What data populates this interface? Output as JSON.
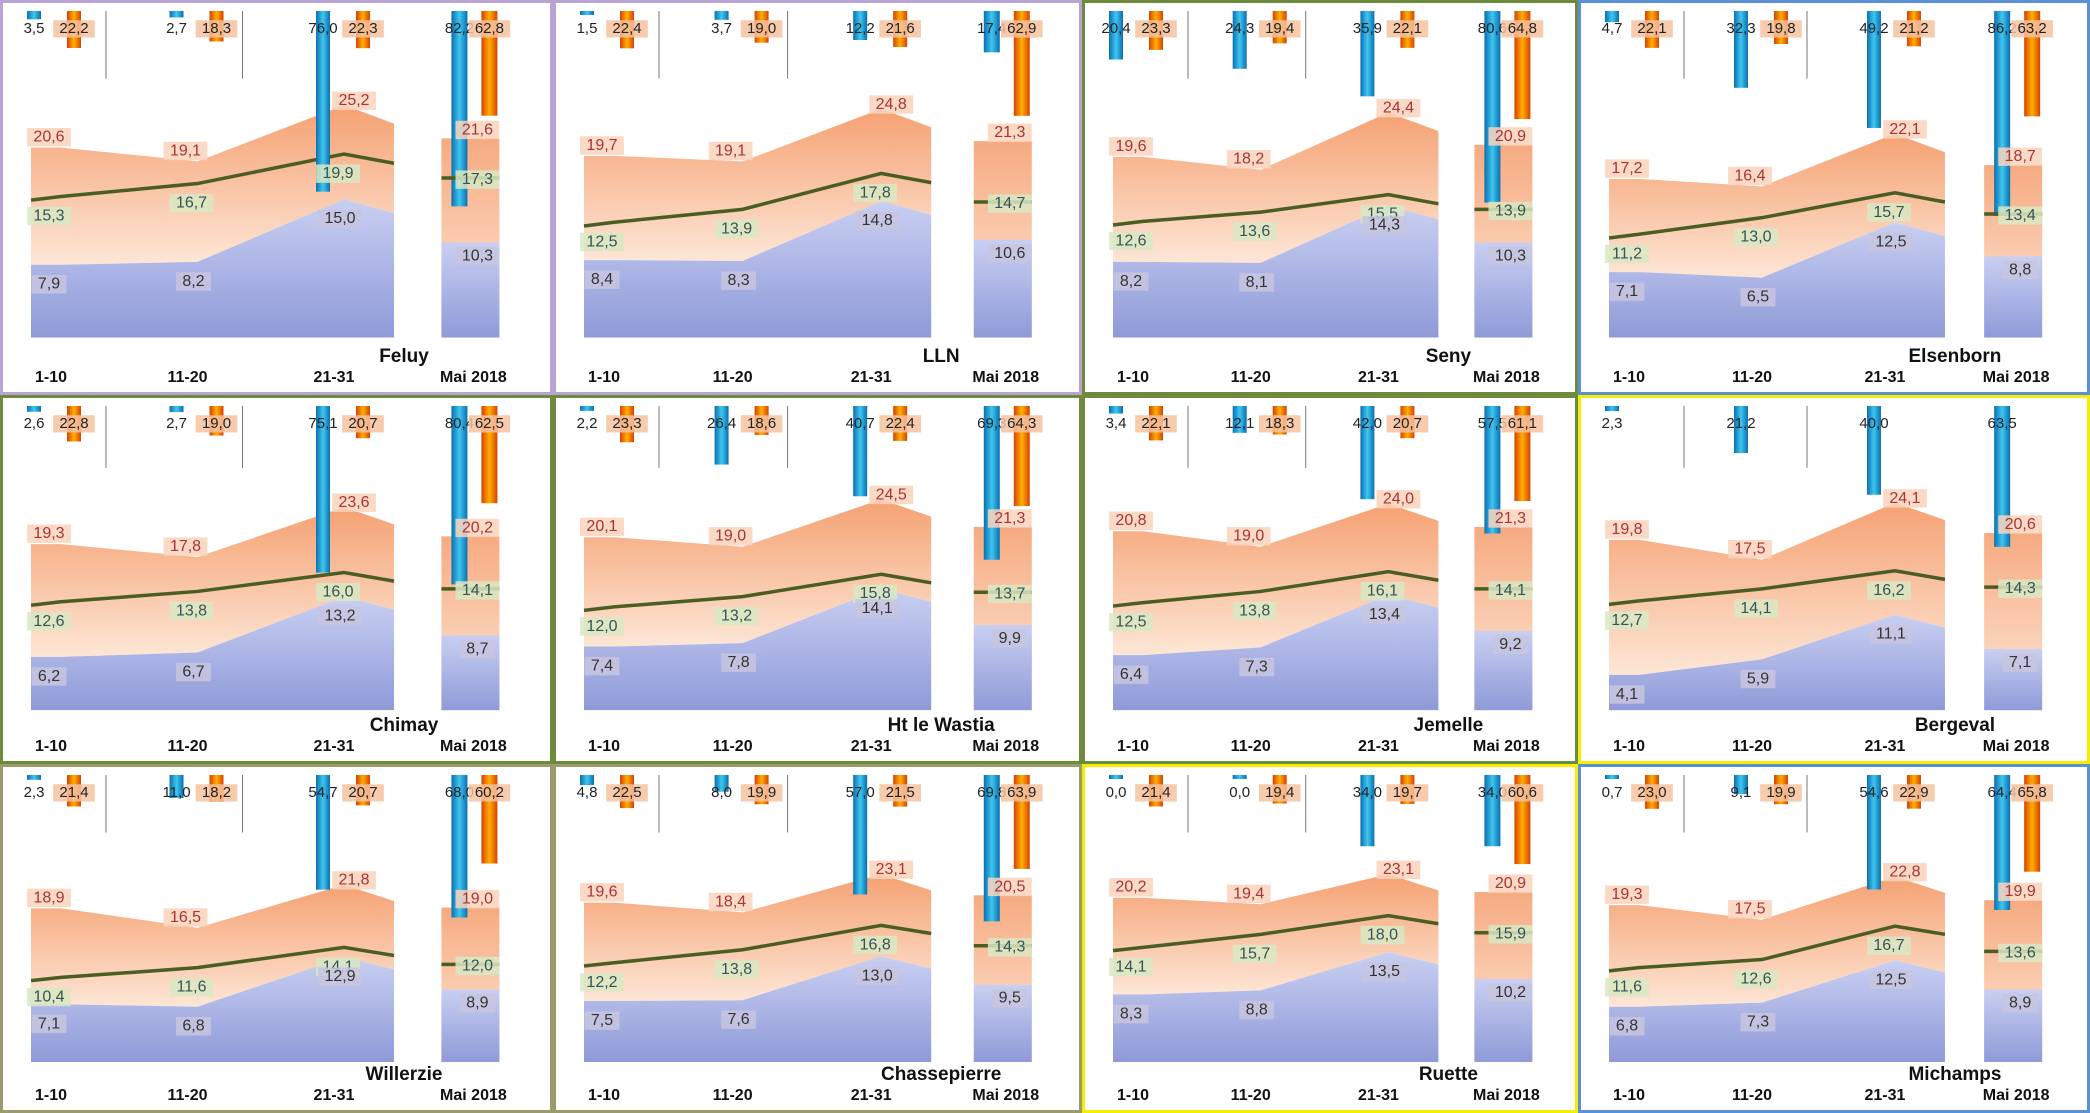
{
  "colors": {
    "purple": "#b9a3d3",
    "green": "#6e8b3d",
    "blue": "#5b8fd6",
    "yellow": "#f5ee00",
    "olive": "#9a9a6a",
    "orange_band": "#f7b98f",
    "blue_band": "#aab3e6",
    "mean_line": "#4a5d23",
    "precip": "#22a7d8",
    "sun": "#ff6a00"
  },
  "category_labels": [
    "1-10",
    "11-20",
    "21-31"
  ],
  "month_label": "Mai 2018",
  "chart_data": [
    {
      "type": "area",
      "station": "Feluy",
      "border": "purple",
      "categories": [
        "1-10",
        "11-20",
        "21-31"
      ],
      "tmax": [
        20.6,
        19.1,
        25.2
      ],
      "tmean": [
        15.3,
        16.7,
        19.9
      ],
      "tmin": [
        7.9,
        8.2,
        15.0
      ],
      "precip": [
        "3,5",
        "2,7",
        "76,0"
      ],
      "sun": [
        "22,2",
        "18,3",
        "22,3"
      ],
      "month": {
        "tmax": "21,6",
        "tmean": "17,3",
        "tmin": "10,3",
        "precip": "82,2",
        "sun": "62,8"
      },
      "tmax_labels": [
        "20,6",
        "19,1",
        "25,2"
      ],
      "tmean_labels": [
        "15,3",
        "16,7",
        "19,9"
      ],
      "tmin_labels": [
        "7,9",
        "8,2",
        "15,0"
      ]
    },
    {
      "type": "area",
      "station": "LLN",
      "border": "purple",
      "categories": [
        "1-10",
        "11-20",
        "21-31"
      ],
      "tmax": [
        19.7,
        19.1,
        24.8
      ],
      "tmean": [
        12.5,
        13.9,
        17.8
      ],
      "tmin": [
        8.4,
        8.3,
        14.8
      ],
      "precip": [
        "1,5",
        "3,7",
        "12,2"
      ],
      "sun": [
        "22,4",
        "19,0",
        "21,6"
      ],
      "month": {
        "tmax": "21,3",
        "tmean": "14,7",
        "tmin": "10,6",
        "precip": "17,4",
        "sun": "62,9"
      },
      "tmax_labels": [
        "19,7",
        "19,1",
        "24,8"
      ],
      "tmean_labels": [
        "12,5",
        "13,9",
        "17,8"
      ],
      "tmin_labels": [
        "8,4",
        "8,3",
        "14,8"
      ]
    },
    {
      "type": "area",
      "station": "Seny",
      "border": "green",
      "categories": [
        "1-10",
        "11-20",
        "21-31"
      ],
      "tmax": [
        19.6,
        18.2,
        24.4
      ],
      "tmean": [
        12.6,
        13.6,
        15.5
      ],
      "tmin": [
        8.2,
        8.1,
        14.3
      ],
      "precip": [
        "20,4",
        "24,3",
        "35,9"
      ],
      "sun": [
        "23,3",
        "19,4",
        "22,1"
      ],
      "month": {
        "tmax": "20,9",
        "tmean": "13,9",
        "tmin": "10,3",
        "precip": "80,6",
        "sun": "64,8"
      },
      "tmax_labels": [
        "19,6",
        "18,2",
        "24,4"
      ],
      "tmean_labels": [
        "12,6",
        "13,6",
        "15,5"
      ],
      "tmin_labels": [
        "8,2",
        "8,1",
        "14,3"
      ]
    },
    {
      "type": "area",
      "station": "Elsenborn",
      "border": "blue",
      "categories": [
        "1-10",
        "11-20",
        "21-31"
      ],
      "tmax": [
        17.2,
        16.4,
        22.1
      ],
      "tmean": [
        11.2,
        13.0,
        15.7
      ],
      "tmin": [
        7.1,
        6.5,
        12.5
      ],
      "precip": [
        "4,7",
        "32,3",
        "49,2"
      ],
      "sun": [
        "22,1",
        "19,8",
        "21,2"
      ],
      "month": {
        "tmax": "18,7",
        "tmean": "13,4",
        "tmin": "8,8",
        "precip": "86,2",
        "sun": "63,2"
      },
      "tmax_labels": [
        "17,2",
        "16,4",
        "22,1"
      ],
      "tmean_labels": [
        "11,2",
        "13,0",
        "15,7"
      ],
      "tmin_labels": [
        "7,1",
        "6,5",
        "12,5"
      ]
    },
    {
      "type": "area",
      "station": "Chimay",
      "border": "green",
      "categories": [
        "1-10",
        "11-20",
        "21-31"
      ],
      "tmax": [
        19.3,
        17.8,
        23.6
      ],
      "tmean": [
        12.6,
        13.8,
        16.0
      ],
      "tmin": [
        6.2,
        6.7,
        13.2
      ],
      "precip": [
        "2,6",
        "2,7",
        "75,1"
      ],
      "sun": [
        "22,8",
        "19,0",
        "20,7"
      ],
      "month": {
        "tmax": "20,2",
        "tmean": "14,1",
        "tmin": "8,7",
        "precip": "80,4",
        "sun": "62,5"
      },
      "tmax_labels": [
        "19,3",
        "17,8",
        "23,6"
      ],
      "tmean_labels": [
        "12,6",
        "13,8",
        "16,0"
      ],
      "tmin_labels": [
        "6,2",
        "6,7",
        "13,2"
      ]
    },
    {
      "type": "area",
      "station": "Ht le Wastia",
      "border": "green",
      "categories": [
        "1-10",
        "11-20",
        "21-31"
      ],
      "tmax": [
        20.1,
        19.0,
        24.5
      ],
      "tmean": [
        12.0,
        13.2,
        15.8
      ],
      "tmin": [
        7.4,
        7.8,
        14.1
      ],
      "precip": [
        "2,2",
        "26,4",
        "40,7"
      ],
      "sun": [
        "23,3",
        "18,6",
        "22,4"
      ],
      "month": {
        "tmax": "21,3",
        "tmean": "13,7",
        "tmin": "9,9",
        "precip": "69,3",
        "sun": "64,3"
      },
      "tmax_labels": [
        "20,1",
        "19,0",
        "24,5"
      ],
      "tmean_labels": [
        "12,0",
        "13,2",
        "15,8"
      ],
      "tmin_labels": [
        "7,4",
        "7,8",
        "14,1"
      ]
    },
    {
      "type": "area",
      "station": "Jemelle",
      "border": "green",
      "categories": [
        "1-10",
        "11-20",
        "21-31"
      ],
      "tmax": [
        20.8,
        19.0,
        24.0
      ],
      "tmean": [
        12.5,
        13.8,
        16.1
      ],
      "tmin": [
        6.4,
        7.3,
        13.4
      ],
      "precip": [
        "3,4",
        "12,1",
        "42,0"
      ],
      "sun": [
        "22,1",
        "18,3",
        "20,7"
      ],
      "month": {
        "tmax": "21,3",
        "tmean": "14,1",
        "tmin": "9,2",
        "precip": "57,5",
        "sun": "61,1"
      },
      "tmax_labels": [
        "20,8",
        "19,0",
        "24,0"
      ],
      "tmean_labels": [
        "12,5",
        "13,8",
        "16,1"
      ],
      "tmin_labels": [
        "6,4",
        "7,3",
        "13,4"
      ]
    },
    {
      "type": "area",
      "station": "Bergeval",
      "border": "yellow",
      "categories": [
        "1-10",
        "11-20",
        "21-31"
      ],
      "tmax": [
        19.8,
        17.5,
        24.1
      ],
      "tmean": [
        12.7,
        14.1,
        16.2
      ],
      "tmin": [
        4.1,
        5.9,
        11.1
      ],
      "precip": [
        "2,3",
        "21,2",
        "40,0"
      ],
      "sun": [
        "",
        "",
        ""
      ],
      "month": {
        "tmax": "20,6",
        "tmean": "14,3",
        "tmin": "7,1",
        "precip": "63,5",
        "sun": ""
      },
      "tmax_labels": [
        "19,8",
        "17,5",
        "24,1"
      ],
      "tmean_labels": [
        "12,7",
        "14,1",
        "16,2"
      ],
      "tmin_labels": [
        "4,1",
        "5,9",
        "11,1"
      ]
    },
    {
      "type": "area",
      "station": "Willerzie",
      "border": "olive",
      "categories": [
        "1-10",
        "11-20",
        "21-31"
      ],
      "tmax": [
        18.9,
        16.5,
        21.8
      ],
      "tmean": [
        10.4,
        11.6,
        14.1
      ],
      "tmin": [
        7.1,
        6.8,
        12.9
      ],
      "precip": [
        "2,3",
        "11,0",
        "54,7"
      ],
      "sun": [
        "21,4",
        "18,2",
        "20,7"
      ],
      "month": {
        "tmax": "19,0",
        "tmean": "12,0",
        "tmin": "8,9",
        "precip": "68,0",
        "sun": "60,2"
      },
      "tmax_labels": [
        "18,9",
        "16,5",
        "21,8"
      ],
      "tmean_labels": [
        "10,4",
        "11,6",
        "14,1"
      ],
      "tmin_labels": [
        "7,1",
        "6,8",
        "12,9"
      ]
    },
    {
      "type": "area",
      "station": "Chassepierre",
      "border": "olive",
      "categories": [
        "1-10",
        "11-20",
        "21-31"
      ],
      "tmax": [
        19.6,
        18.4,
        23.1
      ],
      "tmean": [
        12.2,
        13.8,
        16.8
      ],
      "tmin": [
        7.5,
        7.6,
        13.0
      ],
      "precip": [
        "4,8",
        "8,0",
        "57,0"
      ],
      "sun": [
        "22,5",
        "19,9",
        "21,5"
      ],
      "month": {
        "tmax": "20,5",
        "tmean": "14,3",
        "tmin": "9,5",
        "precip": "69,8",
        "sun": "63,9"
      },
      "tmax_labels": [
        "19,6",
        "18,4",
        "23,1"
      ],
      "tmean_labels": [
        "12,2",
        "13,8",
        "16,8"
      ],
      "tmin_labels": [
        "7,5",
        "7,6",
        "13,0"
      ]
    },
    {
      "type": "area",
      "station": "Ruette",
      "border": "yellow",
      "categories": [
        "1-10",
        "11-20",
        "21-31"
      ],
      "tmax": [
        20.2,
        19.4,
        23.1
      ],
      "tmean": [
        14.1,
        15.7,
        18.0
      ],
      "tmin": [
        8.3,
        8.8,
        13.5
      ],
      "precip": [
        "0,0",
        "0,0",
        "34,0"
      ],
      "sun": [
        "21,4",
        "19,4",
        "19,7"
      ],
      "month": {
        "tmax": "20,9",
        "tmean": "15,9",
        "tmin": "10,2",
        "precip": "34,0",
        "sun": "60,6"
      },
      "tmax_labels": [
        "20,2",
        "19,4",
        "23,1"
      ],
      "tmean_labels": [
        "14,1",
        "15,7",
        "18,0"
      ],
      "tmin_labels": [
        "8,3",
        "8,8",
        "13,5"
      ]
    },
    {
      "type": "area",
      "station": "Michamps",
      "border": "blue",
      "categories": [
        "1-10",
        "11-20",
        "21-31"
      ],
      "tmax": [
        19.3,
        17.5,
        22.8
      ],
      "tmean": [
        11.6,
        12.6,
        16.7
      ],
      "tmin": [
        6.8,
        7.3,
        12.5
      ],
      "precip": [
        "0,7",
        "9,1",
        "54,6"
      ],
      "sun": [
        "23,0",
        "19,9",
        "22,9"
      ],
      "month": {
        "tmax": "19,9",
        "tmean": "13,6",
        "tmin": "8,9",
        "precip": "64,4",
        "sun": "65,8"
      },
      "tmax_labels": [
        "19,3",
        "17,5",
        "22,8"
      ],
      "tmean_labels": [
        "11,6",
        "12,6",
        "16,7"
      ],
      "tmin_labels": [
        "6,8",
        "7,3",
        "12,5"
      ]
    }
  ]
}
